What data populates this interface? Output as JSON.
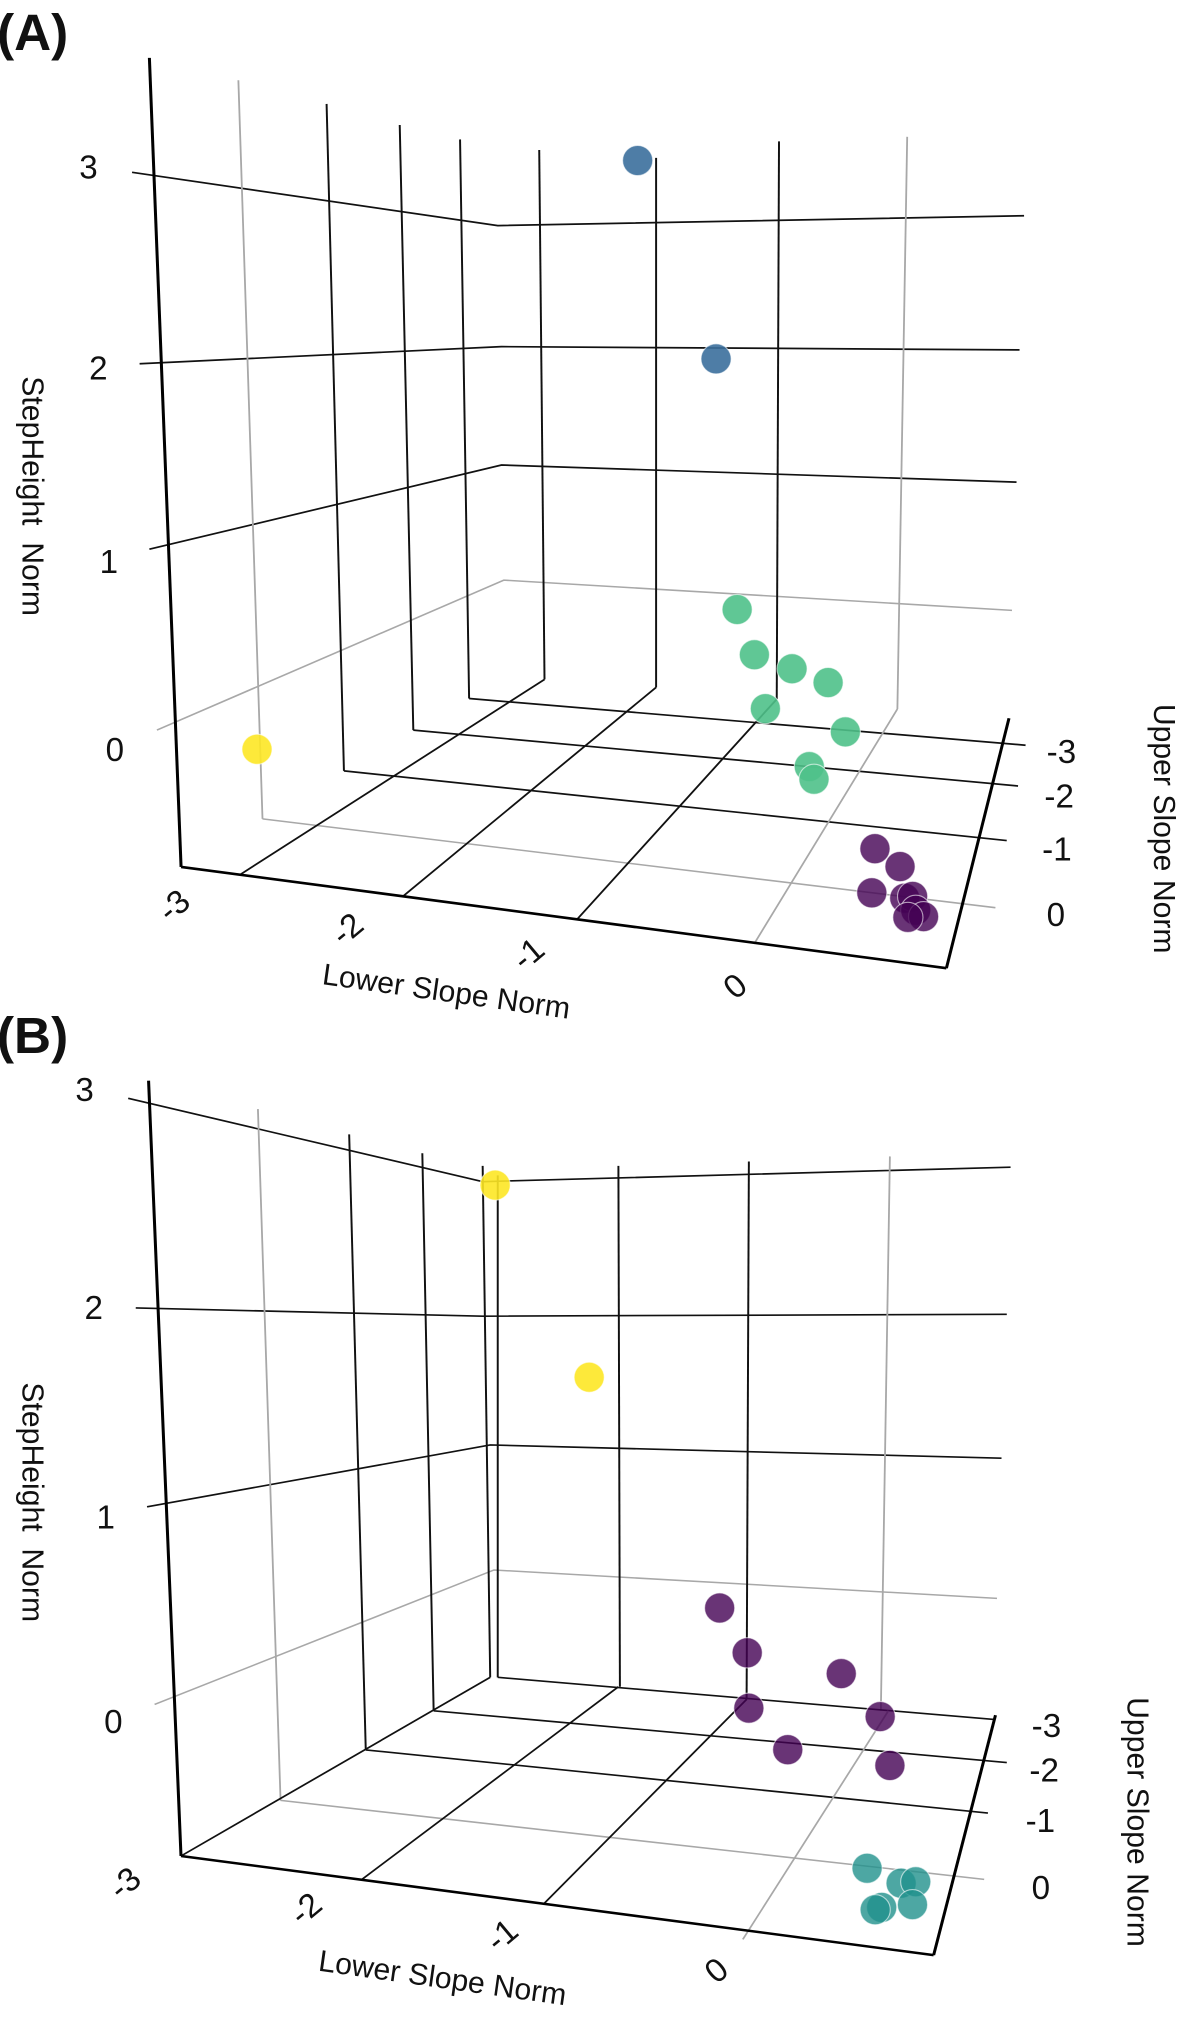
{
  "chart_data": [
    {
      "type": "scatter3d",
      "panel_label": "(A)",
      "xlabel": "Lower Slope Norm",
      "ylabel": "Upper Slope Norm",
      "zlabel": "StepHeight  Norm",
      "x_ticks": [
        "-3",
        "-2",
        "-1",
        "0"
      ],
      "y_ticks": [
        "-3",
        "-2",
        "-1",
        "0"
      ],
      "z_ticks": [
        "3",
        "2",
        "1",
        "0"
      ],
      "grid": true,
      "series": [
        {
          "color": "#3b6f9c",
          "points": [
            [
              -1.57,
              -3,
              3.3
            ],
            [
              -1.07,
              -3,
              1.9
            ]
          ]
        },
        {
          "color": "#4fc18a",
          "points": [
            [
              -0.74,
              -2,
              0.46
            ],
            [
              -0.63,
              -2,
              0.14
            ],
            [
              -0.39,
              -2,
              0.07
            ],
            [
              -0.16,
              -2,
              0.0
            ],
            [
              -0.56,
              -2,
              -0.25
            ],
            [
              -0.05,
              -2,
              -0.35
            ],
            [
              -0.28,
              -2,
              -0.64
            ],
            [
              -0.25,
              -2,
              -0.73
            ]
          ]
        },
        {
          "color": "#fde725",
          "points": [
            [
              -3.41,
              0,
              -0.21
            ]
          ]
        },
        {
          "color": "#440154",
          "points": [
            [
              0.53,
              0,
              -0.39
            ],
            [
              0.69,
              0,
              -0.5
            ],
            [
              0.51,
              0,
              -0.72
            ],
            [
              0.72,
              0,
              -0.73
            ],
            [
              0.77,
              0,
              -0.71
            ],
            [
              0.79,
              0,
              -0.81
            ],
            [
              0.84,
              0,
              -0.85
            ],
            [
              0.74,
              0,
              -0.87
            ]
          ]
        }
      ]
    },
    {
      "type": "scatter3d",
      "panel_label": "(B)",
      "xlabel": "Lower Slope Norm",
      "ylabel": "Upper Slope Norm",
      "zlabel": "StepHeight  Norm",
      "x_ticks": [
        "-3",
        "-2",
        "-1",
        "0"
      ],
      "y_ticks": [
        "-3",
        "-2",
        "-1",
        "0"
      ],
      "z_ticks": [
        "3",
        "2",
        "1",
        "0"
      ],
      "grid": true,
      "series": [
        {
          "color": "#fde725",
          "points": [
            [
              -2.43,
              -3,
              2.56
            ],
            [
              -1.85,
              -3,
              1.3
            ]
          ]
        },
        {
          "color": "#440154",
          "points": [
            [
              -0.85,
              -2,
              0.15
            ],
            [
              -0.68,
              -2,
              -0.14
            ],
            [
              -0.1,
              -2,
              -0.22
            ],
            [
              -0.67,
              -2,
              -0.52
            ],
            [
              0.14,
              -2,
              -0.49
            ],
            [
              -0.43,
              -2,
              -0.78
            ],
            [
              0.2,
              -2,
              -0.82
            ]
          ]
        },
        {
          "color": "#21918c",
          "points": [
            [
              0.45,
              0,
              -0.84
            ],
            [
              0.66,
              0,
              -0.92
            ],
            [
              0.75,
              0,
              -0.9
            ],
            [
              0.54,
              0,
              -1.1
            ],
            [
              0.73,
              0,
              -1.06
            ],
            [
              0.5,
              0,
              -1.12
            ]
          ]
        }
      ]
    }
  ]
}
